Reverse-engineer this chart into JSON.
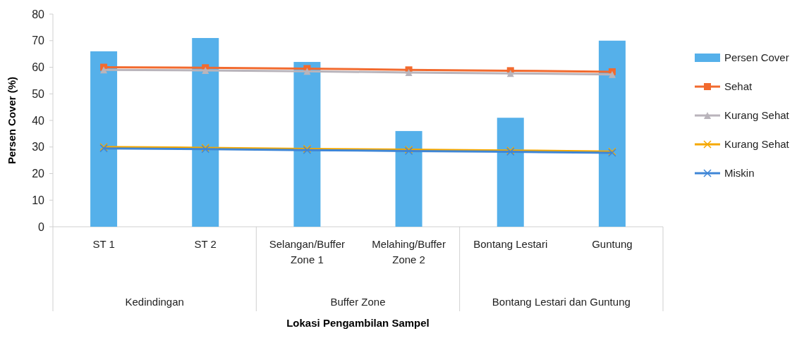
{
  "chart_data": {
    "type": "bar",
    "xlabel": "Lokasi Pengambilan Sampel",
    "ylabel": "Persen Cover (%)",
    "categories": [
      "ST 1",
      "ST 2",
      "Selangan/Buffer Zone 1",
      "Melahing/Buffer Zone 2",
      "Bontang Lestari",
      "Guntung"
    ],
    "annotations": [
      "Kedindingan",
      "Buffer Zone",
      "Bontang Lestari dan Guntung"
    ],
    "series": [
      {
        "name": "Persen Cover",
        "color": "#55b0ea",
        "values": [
          66,
          71,
          62,
          36,
          41,
          70
        ]
      },
      {
        "name": "Sehat",
        "type": "line",
        "color": "#f26a2e",
        "marker": "square",
        "values": [
          60,
          59.8,
          59.5,
          59,
          58.7,
          58.3
        ]
      },
      {
        "name": "Kurang Sehat",
        "type": "line",
        "color": "#b9b4bb",
        "marker": "triangle",
        "values": [
          59,
          58.8,
          58.5,
          58,
          57.7,
          57.3
        ]
      },
      {
        "name": "Kurang Sehat",
        "type": "line",
        "color": "#f5a800",
        "marker": "cross",
        "values": [
          30,
          29.7,
          29.3,
          29,
          28.7,
          28.3
        ]
      },
      {
        "name": "Miskin",
        "type": "line",
        "color": "#3f86d6",
        "marker": "cross",
        "values": [
          29.5,
          29.2,
          28.8,
          28.5,
          28.2,
          27.8
        ]
      }
    ],
    "ylim": [
      0,
      80
    ],
    "yticks": [
      0,
      10,
      20,
      30,
      40,
      50,
      60,
      70,
      80
    ],
    "grid": false,
    "legend": "right"
  }
}
